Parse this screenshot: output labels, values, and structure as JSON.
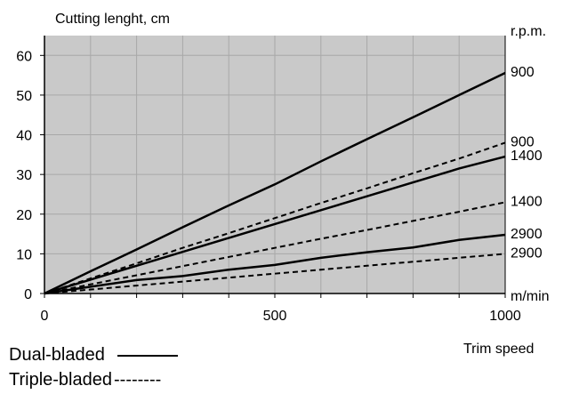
{
  "chart_data": {
    "type": "line",
    "ylabel": "Cutting lenght, cm",
    "right_label": "r.p.m.",
    "xlabel": "Trim speed",
    "x_unit": "m/min",
    "xlim": [
      0,
      1000
    ],
    "ylim": [
      0,
      65
    ],
    "x_ticks": [
      0,
      500,
      1000
    ],
    "y_ticks": [
      0,
      10,
      20,
      30,
      40,
      50,
      60
    ],
    "grid": true,
    "background": "#c9c9c9",
    "series": [
      {
        "name": "900",
        "style": "solid",
        "x": [
          0,
          100,
          200,
          300,
          400,
          500,
          600,
          700,
          800,
          900,
          1000
        ],
        "y": [
          0,
          5.6,
          11.1,
          16.7,
          22.2,
          27.5,
          33.3,
          38.9,
          44.4,
          50,
          55.6
        ]
      },
      {
        "name": "1400",
        "style": "solid",
        "x": [
          0,
          100,
          200,
          300,
          400,
          500,
          600,
          700,
          800,
          900,
          1000
        ],
        "y": [
          0,
          3.5,
          7,
          10.5,
          14,
          17.5,
          21,
          24.5,
          28,
          31.5,
          34.5
        ]
      },
      {
        "name": "2900",
        "style": "solid",
        "x": [
          0,
          100,
          200,
          300,
          400,
          500,
          600,
          700,
          800,
          900,
          1000
        ],
        "y": [
          0,
          1.7,
          3.4,
          4.4,
          6,
          7.2,
          9,
          10.4,
          11.6,
          13.5,
          14.8
        ]
      },
      {
        "name": "900",
        "style": "dashed",
        "x": [
          0,
          100,
          200,
          300,
          400,
          500,
          600,
          700,
          800,
          900,
          1000
        ],
        "y": [
          0,
          3.8,
          7.6,
          11.5,
          15.2,
          19,
          22.8,
          26.5,
          30.3,
          34,
          38
        ]
      },
      {
        "name": "1400",
        "style": "dashed",
        "x": [
          0,
          100,
          200,
          300,
          400,
          500,
          600,
          700,
          800,
          900,
          1000
        ],
        "y": [
          0,
          2.3,
          4.6,
          6.9,
          9.2,
          11.5,
          13.8,
          16,
          18.3,
          20.6,
          23
        ]
      },
      {
        "name": "2900",
        "style": "dashed",
        "x": [
          0,
          100,
          200,
          300,
          400,
          500,
          600,
          700,
          800,
          900,
          1000
        ],
        "y": [
          0,
          1,
          2,
          3,
          4,
          5,
          6,
          7,
          8,
          9,
          10
        ]
      }
    ],
    "legend": [
      {
        "label": "Dual-bladed",
        "style": "solid"
      },
      {
        "label": "Triple-bladed",
        "style": "dashed",
        "sample": "--------"
      }
    ],
    "legend_position": "bottom-left"
  }
}
